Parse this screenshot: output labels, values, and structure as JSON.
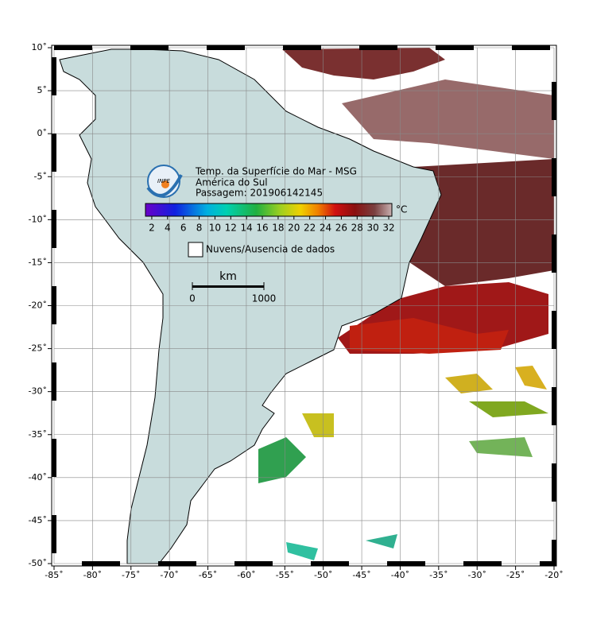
{
  "map": {
    "title": "Temp. da Superfície do Mar - MSG",
    "subtitle": "América do Sul",
    "pass": "Passagem: 201906142145",
    "logo": "INPE",
    "xlim": [
      -85,
      -20
    ],
    "ylim": [
      -50,
      10
    ],
    "xticks": [
      {
        "value": -85,
        "label": "-85˚"
      },
      {
        "value": -80,
        "label": "-80˚"
      },
      {
        "value": -75,
        "label": "-75˚"
      },
      {
        "value": -70,
        "label": "-70˚"
      },
      {
        "value": -65,
        "label": "-65˚"
      },
      {
        "value": -60,
        "label": "-60˚"
      },
      {
        "value": -55,
        "label": "-55˚"
      },
      {
        "value": -50,
        "label": "-50˚"
      },
      {
        "value": -45,
        "label": "-45˚"
      },
      {
        "value": -40,
        "label": "-40˚"
      },
      {
        "value": -35,
        "label": "-35˚"
      },
      {
        "value": -30,
        "label": "-30˚"
      },
      {
        "value": -25,
        "label": "-25˚"
      },
      {
        "value": -20,
        "label": "-20˚"
      }
    ],
    "yticks": [
      {
        "value": 10,
        "label": "10˚"
      },
      {
        "value": 5,
        "label": "5˚"
      },
      {
        "value": 0,
        "label": "0˚"
      },
      {
        "value": -5,
        "label": "-5˚"
      },
      {
        "value": -10,
        "label": "-10˚"
      },
      {
        "value": -15,
        "label": "-15˚"
      },
      {
        "value": -20,
        "label": "-20˚"
      },
      {
        "value": -25,
        "label": "-25˚"
      },
      {
        "value": -30,
        "label": "-30˚"
      },
      {
        "value": -35,
        "label": "-35˚"
      },
      {
        "value": -40,
        "label": "-40˚"
      },
      {
        "value": -45,
        "label": "-45˚"
      },
      {
        "value": -50,
        "label": "-50˚"
      }
    ],
    "grid": true,
    "colorbar": {
      "unit": "°C",
      "lim": [
        1.2,
        32.4
      ],
      "ticks": [
        2,
        4,
        6,
        8,
        10,
        12,
        14,
        16,
        18,
        20,
        22,
        24,
        26,
        28,
        30,
        32
      ]
    },
    "legend": "Nuvens/Ausencia de dados",
    "scale": {
      "unit": "km",
      "start": 0,
      "end": 1000
    }
  }
}
